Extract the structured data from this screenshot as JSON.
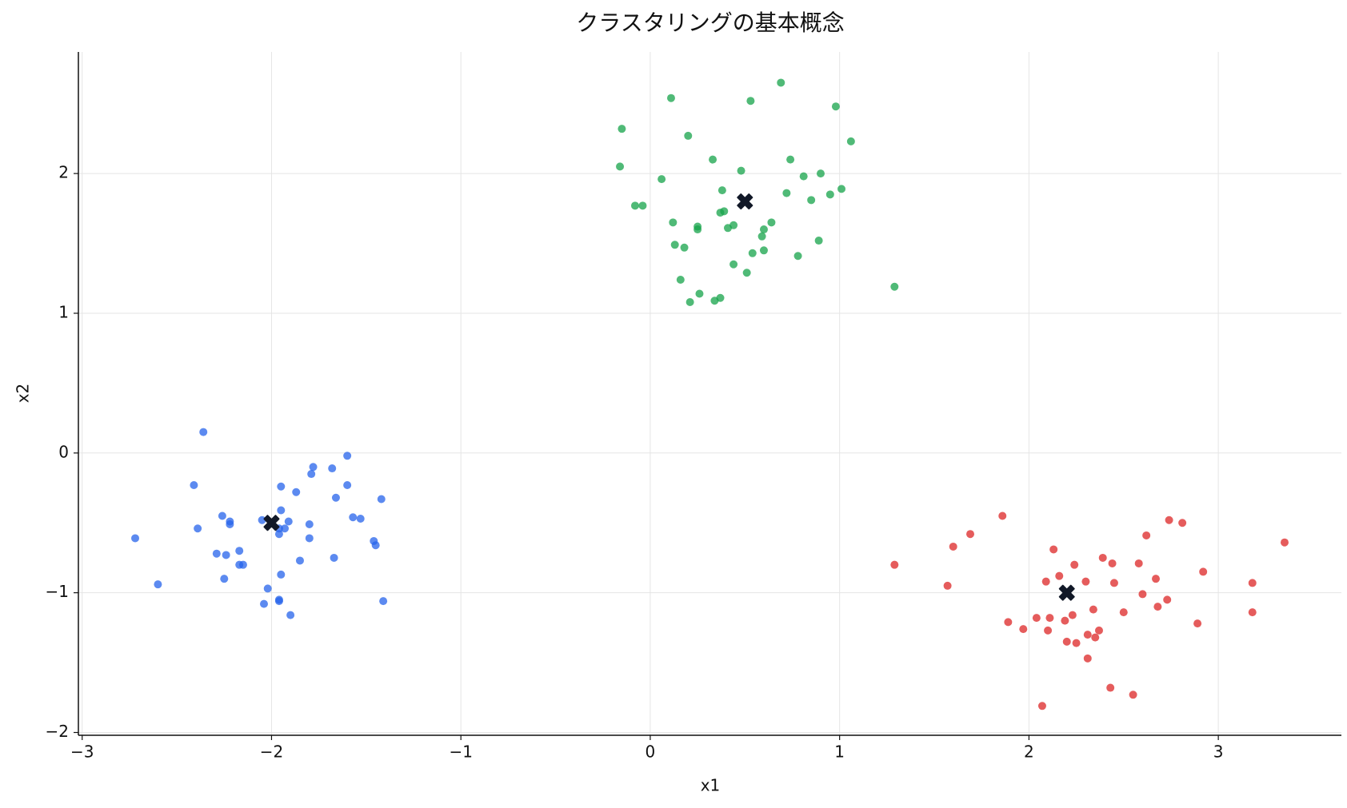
{
  "chart_data": {
    "type": "scatter",
    "title": "クラスタリングの基本概念",
    "x_label": "x1",
    "y_label": "x2",
    "xlim": [
      -3.02,
      3.65
    ],
    "ylim": [
      -2.02,
      2.87
    ],
    "xticks": [
      {
        "value": -3,
        "label": "−3"
      },
      {
        "value": -2,
        "label": "−2"
      },
      {
        "value": -1,
        "label": "−1"
      },
      0,
      1,
      2,
      3
    ],
    "yticks": [
      {
        "value": -2,
        "label": "−2"
      },
      {
        "value": -1,
        "label": "−1"
      },
      0,
      1,
      2
    ],
    "grid": true,
    "series": [
      {
        "color": "#2563eb",
        "x": [
          -2.36,
          -1.6,
          -1.78,
          -1.68,
          -1.79,
          -2.41,
          -1.6,
          -1.95,
          -1.87,
          -1.66,
          -1.42,
          -1.95,
          -2.26,
          -1.57,
          -1.53,
          -2.05,
          -2.22,
          -1.91,
          -2.22,
          -1.8,
          -2.39,
          -1.96,
          -1.93,
          -1.96,
          -2.72,
          -1.8,
          -1.46,
          -1.45,
          -2.17,
          -2.29,
          -2.24,
          -1.67,
          -1.85,
          -2.17,
          -2.15,
          -1.95,
          -2.25,
          -2.6,
          -2.02,
          -1.96,
          -1.96,
          -1.41,
          -2.04,
          -1.9
        ],
        "y": [
          0.15,
          -0.02,
          -0.1,
          -0.11,
          -0.15,
          -0.23,
          -0.23,
          -0.24,
          -0.28,
          -0.32,
          -0.33,
          -0.41,
          -0.45,
          -0.46,
          -0.47,
          -0.48,
          -0.49,
          -0.49,
          -0.51,
          -0.51,
          -0.54,
          -0.54,
          -0.54,
          -0.58,
          -0.61,
          -0.61,
          -0.63,
          -0.66,
          -0.7,
          -0.72,
          -0.73,
          -0.75,
          -0.77,
          -0.8,
          -0.8,
          -0.87,
          -0.9,
          -0.94,
          -0.97,
          -1.05,
          -1.06,
          -1.06,
          -1.08,
          -1.16
        ]
      },
      {
        "color": "#16a34a",
        "x": [
          0.69,
          0.11,
          0.53,
          0.98,
          -0.15,
          0.2,
          1.06,
          0.33,
          0.74,
          -0.16,
          0.48,
          0.9,
          0.81,
          0.06,
          1.01,
          0.38,
          0.72,
          0.95,
          0.85,
          -0.08,
          -0.04,
          0.39,
          0.37,
          0.12,
          0.64,
          0.25,
          0.44,
          0.41,
          0.25,
          0.6,
          0.59,
          0.89,
          0.13,
          0.18,
          0.6,
          0.54,
          0.78,
          0.44,
          0.51,
          0.16,
          1.29,
          0.26,
          0.37,
          0.34,
          0.21
        ],
        "y": [
          2.65,
          2.54,
          2.52,
          2.48,
          2.32,
          2.27,
          2.23,
          2.1,
          2.1,
          2.05,
          2.02,
          2.0,
          1.98,
          1.96,
          1.89,
          1.88,
          1.86,
          1.85,
          1.81,
          1.77,
          1.77,
          1.73,
          1.72,
          1.65,
          1.65,
          1.62,
          1.63,
          1.61,
          1.6,
          1.6,
          1.55,
          1.52,
          1.49,
          1.47,
          1.45,
          1.43,
          1.41,
          1.35,
          1.29,
          1.24,
          1.19,
          1.14,
          1.11,
          1.09,
          1.08
        ]
      },
      {
        "color": "#dc2626",
        "x": [
          1.86,
          2.74,
          2.81,
          2.62,
          1.69,
          3.35,
          1.6,
          2.13,
          2.39,
          2.44,
          2.58,
          1.29,
          2.24,
          2.92,
          2.16,
          2.67,
          2.09,
          2.3,
          2.45,
          3.18,
          1.57,
          2.6,
          2.73,
          2.68,
          3.18,
          2.34,
          2.5,
          2.23,
          2.04,
          2.11,
          2.19,
          1.89,
          2.89,
          1.97,
          2.1,
          2.37,
          2.31,
          2.35,
          2.2,
          2.25,
          2.31,
          2.43,
          2.55,
          2.07
        ],
        "y": [
          -0.45,
          -0.48,
          -0.5,
          -0.59,
          -0.58,
          -0.64,
          -0.67,
          -0.69,
          -0.75,
          -0.79,
          -0.79,
          -0.8,
          -0.8,
          -0.85,
          -0.88,
          -0.9,
          -0.92,
          -0.92,
          -0.93,
          -0.93,
          -0.95,
          -1.01,
          -1.05,
          -1.1,
          -1.14,
          -1.12,
          -1.14,
          -1.16,
          -1.18,
          -1.18,
          -1.2,
          -1.21,
          -1.22,
          -1.26,
          -1.27,
          -1.27,
          -1.3,
          -1.32,
          -1.35,
          -1.36,
          -1.47,
          -1.68,
          -1.73,
          -1.81
        ]
      }
    ],
    "centroids": {
      "color": "#111827",
      "x": [
        -2.0,
        0.5,
        2.2
      ],
      "y": [
        -0.5,
        1.8,
        -1.0
      ]
    }
  }
}
